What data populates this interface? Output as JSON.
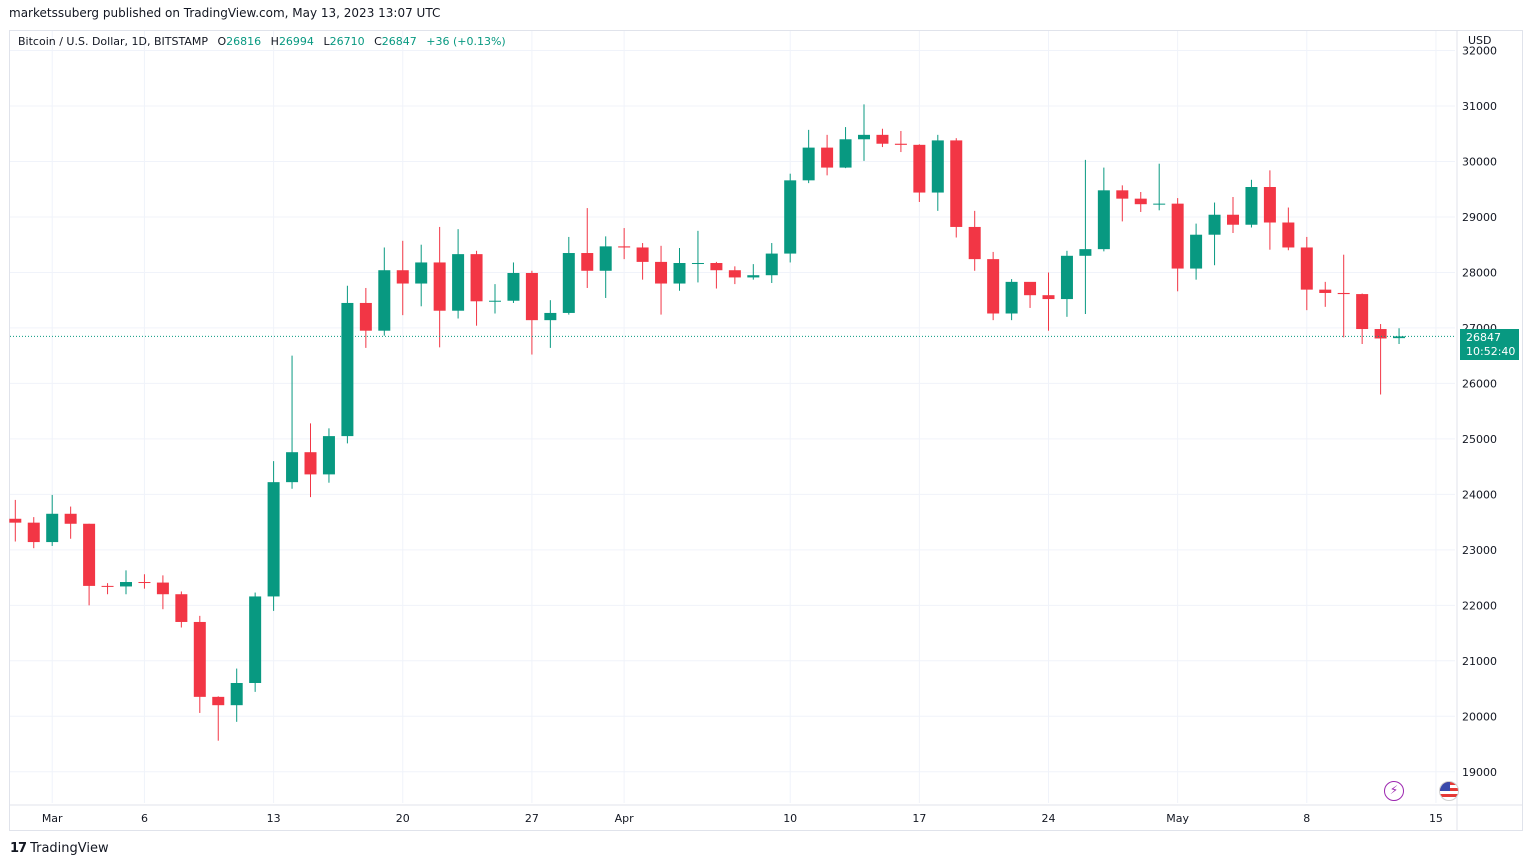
{
  "header": {
    "publisher": "marketssuberg published on TradingView.com, May 13, 2023 13:07 UTC"
  },
  "legend": {
    "symbol": "Bitcoin / U.S. Dollar, 1D, BITSTAMP",
    "o_label": "O",
    "o_value": "26816",
    "h_label": "H",
    "h_value": "26994",
    "l_label": "L",
    "l_value": "26710",
    "c_label": "C",
    "c_value": "26847",
    "change": "+36 (+0.13%)"
  },
  "axis": {
    "currency": "USD"
  },
  "last_price": {
    "value": "26847",
    "countdown": "10:52:40"
  },
  "footer": {
    "brand": "TradingView"
  },
  "colors": {
    "up": "#089981",
    "down": "#f23645",
    "grid": "#f0f3fa",
    "text": "#131722"
  },
  "chart_data": {
    "type": "candlestick",
    "x_labels": [
      "Mar",
      "6",
      "13",
      "20",
      "27",
      "Apr",
      "10",
      "17",
      "24",
      "May",
      "8",
      "15"
    ],
    "x_label_dates": [
      "2023-03-01",
      "2023-03-06",
      "2023-03-13",
      "2023-03-20",
      "2023-03-27",
      "2023-04-01",
      "2023-04-10",
      "2023-04-17",
      "2023-04-24",
      "2023-05-01",
      "2023-05-08",
      "2023-05-15"
    ],
    "y_ticks": [
      "19000",
      "20000",
      "21000",
      "22000",
      "23000",
      "24000",
      "25000",
      "26000",
      "27000",
      "28000",
      "29000",
      "30000",
      "31000",
      "32000"
    ],
    "ylim": [
      18200,
      32300
    ],
    "last_value": 26847,
    "candles": [
      {
        "date": "2023-02-27",
        "o": 23560,
        "h": 23900,
        "l": 23150,
        "c": 23490
      },
      {
        "date": "2023-02-28",
        "o": 23490,
        "h": 23590,
        "l": 23030,
        "c": 23140
      },
      {
        "date": "2023-03-01",
        "o": 23140,
        "h": 23990,
        "l": 23070,
        "c": 23650
      },
      {
        "date": "2023-03-02",
        "o": 23650,
        "h": 23780,
        "l": 23200,
        "c": 23470
      },
      {
        "date": "2023-03-03",
        "o": 23470,
        "h": 23470,
        "l": 22000,
        "c": 22350
      },
      {
        "date": "2023-03-04",
        "o": 22350,
        "h": 22400,
        "l": 22200,
        "c": 22340
      },
      {
        "date": "2023-03-05",
        "o": 22340,
        "h": 22630,
        "l": 22200,
        "c": 22420
      },
      {
        "date": "2023-03-06",
        "o": 22420,
        "h": 22560,
        "l": 22300,
        "c": 22410
      },
      {
        "date": "2023-03-07",
        "o": 22410,
        "h": 22540,
        "l": 21930,
        "c": 22200
      },
      {
        "date": "2023-03-08",
        "o": 22200,
        "h": 22250,
        "l": 21600,
        "c": 21700
      },
      {
        "date": "2023-03-09",
        "o": 21700,
        "h": 21810,
        "l": 20060,
        "c": 20350
      },
      {
        "date": "2023-03-10",
        "o": 20350,
        "h": 20360,
        "l": 19560,
        "c": 20200
      },
      {
        "date": "2023-03-11",
        "o": 20200,
        "h": 20860,
        "l": 19900,
        "c": 20600
      },
      {
        "date": "2023-03-12",
        "o": 20600,
        "h": 22230,
        "l": 20440,
        "c": 22160
      },
      {
        "date": "2023-03-13",
        "o": 22160,
        "h": 24600,
        "l": 21900,
        "c": 24220
      },
      {
        "date": "2023-03-14",
        "o": 24220,
        "h": 26500,
        "l": 24100,
        "c": 24760
      },
      {
        "date": "2023-03-15",
        "o": 24760,
        "h": 25280,
        "l": 23950,
        "c": 24360
      },
      {
        "date": "2023-03-16",
        "o": 24360,
        "h": 25190,
        "l": 24210,
        "c": 25050
      },
      {
        "date": "2023-03-17",
        "o": 25050,
        "h": 27760,
        "l": 24920,
        "c": 27450
      },
      {
        "date": "2023-03-18",
        "o": 27450,
        "h": 27720,
        "l": 26640,
        "c": 26950
      },
      {
        "date": "2023-03-19",
        "o": 26950,
        "h": 28450,
        "l": 26860,
        "c": 28040
      },
      {
        "date": "2023-03-20",
        "o": 28040,
        "h": 28570,
        "l": 27230,
        "c": 27800
      },
      {
        "date": "2023-03-21",
        "o": 27800,
        "h": 28500,
        "l": 27390,
        "c": 28180
      },
      {
        "date": "2023-03-22",
        "o": 28180,
        "h": 28820,
        "l": 26650,
        "c": 27310
      },
      {
        "date": "2023-03-23",
        "o": 27310,
        "h": 28780,
        "l": 27170,
        "c": 28330
      },
      {
        "date": "2023-03-24",
        "o": 28330,
        "h": 28390,
        "l": 27040,
        "c": 27480
      },
      {
        "date": "2023-03-25",
        "o": 27480,
        "h": 27790,
        "l": 27260,
        "c": 27490
      },
      {
        "date": "2023-03-26",
        "o": 27490,
        "h": 28180,
        "l": 27450,
        "c": 27990
      },
      {
        "date": "2023-03-27",
        "o": 27990,
        "h": 28030,
        "l": 26520,
        "c": 27140
      },
      {
        "date": "2023-03-28",
        "o": 27140,
        "h": 27500,
        "l": 26640,
        "c": 27270
      },
      {
        "date": "2023-03-29",
        "o": 27270,
        "h": 28640,
        "l": 27240,
        "c": 28350
      },
      {
        "date": "2023-03-30",
        "o": 28350,
        "h": 29160,
        "l": 27720,
        "c": 28030
      },
      {
        "date": "2023-03-31",
        "o": 28030,
        "h": 28650,
        "l": 27540,
        "c": 28470
      },
      {
        "date": "2023-04-01",
        "o": 28470,
        "h": 28800,
        "l": 28240,
        "c": 28450
      },
      {
        "date": "2023-04-02",
        "o": 28450,
        "h": 28530,
        "l": 27870,
        "c": 28190
      },
      {
        "date": "2023-04-03",
        "o": 28190,
        "h": 28480,
        "l": 27240,
        "c": 27800
      },
      {
        "date": "2023-04-04",
        "o": 27800,
        "h": 28440,
        "l": 27670,
        "c": 28170
      },
      {
        "date": "2023-04-05",
        "o": 28170,
        "h": 28750,
        "l": 27820,
        "c": 28170
      },
      {
        "date": "2023-04-06",
        "o": 28170,
        "h": 28190,
        "l": 27710,
        "c": 28040
      },
      {
        "date": "2023-04-07",
        "o": 28040,
        "h": 28110,
        "l": 27790,
        "c": 27910
      },
      {
        "date": "2023-04-08",
        "o": 27910,
        "h": 28150,
        "l": 27870,
        "c": 27950
      },
      {
        "date": "2023-04-09",
        "o": 27950,
        "h": 28530,
        "l": 27810,
        "c": 28340
      },
      {
        "date": "2023-04-10",
        "o": 28340,
        "h": 29780,
        "l": 28180,
        "c": 29660
      },
      {
        "date": "2023-04-11",
        "o": 29660,
        "h": 30570,
        "l": 29610,
        "c": 30250
      },
      {
        "date": "2023-04-12",
        "o": 30250,
        "h": 30480,
        "l": 29750,
        "c": 29890
      },
      {
        "date": "2023-04-13",
        "o": 29890,
        "h": 30620,
        "l": 29880,
        "c": 30400
      },
      {
        "date": "2023-04-14",
        "o": 30400,
        "h": 31030,
        "l": 30010,
        "c": 30480
      },
      {
        "date": "2023-04-15",
        "o": 30480,
        "h": 30590,
        "l": 30260,
        "c": 30320
      },
      {
        "date": "2023-04-16",
        "o": 30320,
        "h": 30550,
        "l": 30170,
        "c": 30300
      },
      {
        "date": "2023-04-17",
        "o": 30300,
        "h": 30310,
        "l": 29270,
        "c": 29440
      },
      {
        "date": "2023-04-18",
        "o": 29440,
        "h": 30480,
        "l": 29110,
        "c": 30380
      },
      {
        "date": "2023-04-19",
        "o": 30380,
        "h": 30420,
        "l": 28630,
        "c": 28820
      },
      {
        "date": "2023-04-20",
        "o": 28820,
        "h": 29110,
        "l": 28030,
        "c": 28240
      },
      {
        "date": "2023-04-21",
        "o": 28240,
        "h": 28370,
        "l": 27140,
        "c": 27260
      },
      {
        "date": "2023-04-22",
        "o": 27260,
        "h": 27880,
        "l": 27140,
        "c": 27830
      },
      {
        "date": "2023-04-23",
        "o": 27830,
        "h": 27810,
        "l": 27360,
        "c": 27590
      },
      {
        "date": "2023-04-24",
        "o": 27590,
        "h": 28000,
        "l": 26950,
        "c": 27520
      },
      {
        "date": "2023-04-25",
        "o": 27520,
        "h": 28390,
        "l": 27200,
        "c": 28300
      },
      {
        "date": "2023-04-26",
        "o": 28300,
        "h": 30030,
        "l": 27250,
        "c": 28420
      },
      {
        "date": "2023-04-27",
        "o": 28420,
        "h": 29890,
        "l": 28380,
        "c": 29480
      },
      {
        "date": "2023-04-28",
        "o": 29480,
        "h": 29570,
        "l": 28920,
        "c": 29330
      },
      {
        "date": "2023-04-29",
        "o": 29330,
        "h": 29450,
        "l": 29090,
        "c": 29230
      },
      {
        "date": "2023-04-30",
        "o": 29230,
        "h": 29960,
        "l": 29120,
        "c": 29240
      },
      {
        "date": "2023-05-01",
        "o": 29240,
        "h": 29340,
        "l": 27660,
        "c": 28070
      },
      {
        "date": "2023-05-02",
        "o": 28070,
        "h": 28880,
        "l": 27870,
        "c": 28680
      },
      {
        "date": "2023-05-03",
        "o": 28680,
        "h": 29260,
        "l": 28130,
        "c": 29040
      },
      {
        "date": "2023-05-04",
        "o": 29040,
        "h": 29360,
        "l": 28710,
        "c": 28860
      },
      {
        "date": "2023-05-05",
        "o": 28860,
        "h": 29670,
        "l": 28810,
        "c": 29540
      },
      {
        "date": "2023-05-06",
        "o": 29540,
        "h": 29840,
        "l": 28410,
        "c": 28900
      },
      {
        "date": "2023-05-07",
        "o": 28900,
        "h": 29170,
        "l": 28400,
        "c": 28450
      },
      {
        "date": "2023-05-08",
        "o": 28450,
        "h": 28640,
        "l": 27320,
        "c": 27690
      },
      {
        "date": "2023-05-09",
        "o": 27690,
        "h": 27830,
        "l": 27380,
        "c": 27630
      },
      {
        "date": "2023-05-10",
        "o": 27630,
        "h": 28320,
        "l": 26830,
        "c": 27610
      },
      {
        "date": "2023-05-11",
        "o": 27610,
        "h": 27620,
        "l": 26710,
        "c": 26980
      },
      {
        "date": "2023-05-12",
        "o": 26980,
        "h": 27070,
        "l": 25800,
        "c": 26810
      },
      {
        "date": "2023-05-13",
        "o": 26816,
        "h": 26994,
        "l": 26710,
        "c": 26847
      }
    ]
  }
}
